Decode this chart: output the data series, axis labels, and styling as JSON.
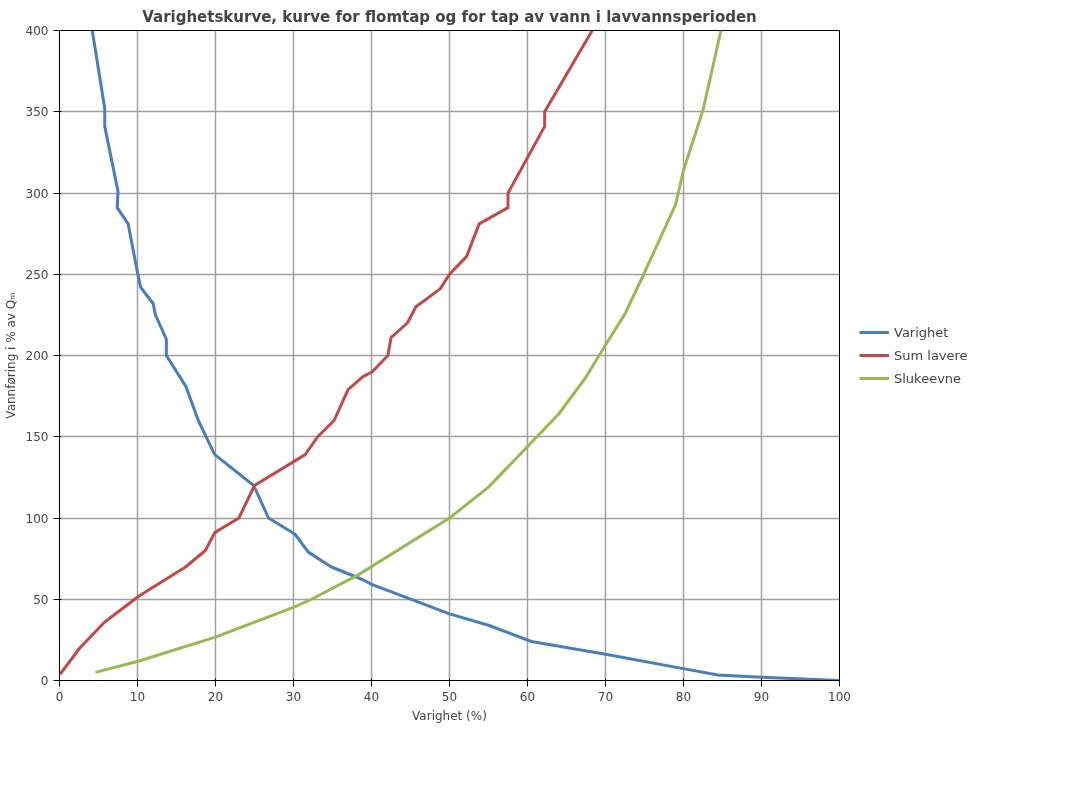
{
  "chart_data": {
    "type": "line",
    "title": "Varighetskurve, kurve for flomtap og for tap av vann i lavvannsperioden",
    "xlabel": "Varighet (%)",
    "ylabel": "Vannføring i % av Qₘ",
    "xlim": [
      0,
      100
    ],
    "ylim": [
      0,
      400
    ],
    "xticks": [
      0,
      10,
      20,
      30,
      40,
      50,
      60,
      70,
      80,
      90,
      100
    ],
    "yticks": [
      0,
      50,
      100,
      150,
      200,
      250,
      300,
      350,
      400
    ],
    "grid": true,
    "legend": "right",
    "marker": "none",
    "line_style": "solid",
    "series": [
      {
        "name": "Varighet",
        "color": "#4a7ebb",
        "x": [
          4.2,
          5.8,
          5.8,
          7.5,
          7.4,
          8.8,
          10,
          10.4,
          12,
          12.3,
          13.7,
          13.7,
          16.2,
          17.8,
          19.9,
          24.9,
          26.8,
          30.2,
          31.9,
          34.8,
          38.9,
          40.1,
          50,
          55,
          60.5,
          70.2,
          80.3,
          84.4,
          90,
          100
        ],
        "values": [
          400,
          352,
          341,
          301,
          291,
          281,
          251,
          242,
          232,
          225,
          210,
          200,
          181,
          160,
          139,
          120,
          100,
          90,
          79,
          70,
          62,
          59,
          41,
          34,
          24,
          16,
          7,
          3.4,
          2,
          0
        ]
      },
      {
        "name": "Sum lavere",
        "color": "#be4b48",
        "x": [
          0.1,
          2.6,
          5.8,
          10.2,
          16.2,
          18.7,
          19.9,
          23,
          25,
          31.5,
          33.1,
          35.2,
          37,
          38.9,
          40.1,
          42.1,
          42.5,
          44.6,
          45.7,
          48.8,
          50,
          52.2,
          53.8,
          57.5,
          57.5,
          62.2,
          62.2,
          68.3
        ],
        "values": [
          4,
          20,
          36,
          52,
          70,
          80,
          91,
          100,
          120,
          139,
          150,
          160,
          179,
          187,
          190,
          200,
          211,
          220,
          230,
          241,
          250,
          261,
          281,
          291,
          300,
          341,
          350,
          400
        ]
      },
      {
        "name": "Slukeevne",
        "color": "#98b954",
        "x": [
          4.6,
          10.2,
          19.9,
          30,
          32.3,
          38.3,
          50,
          55,
          60.1,
          64,
          67.4,
          70.2,
          72.5,
          74.9,
          79,
          80,
          82.5,
          84.8
        ],
        "values": [
          5,
          12,
          26.5,
          45,
          50,
          65,
          100,
          119,
          144.5,
          164,
          186,
          208,
          225.6,
          250,
          293,
          314,
          351,
          400
        ]
      }
    ]
  }
}
